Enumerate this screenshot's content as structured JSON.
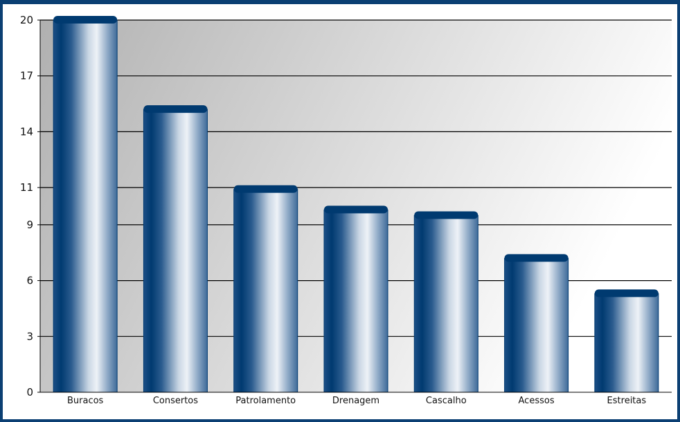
{
  "chart_data": {
    "type": "bar",
    "categories": [
      "Buracos",
      "Consertos",
      "Patrolamento",
      "Drenagem",
      "Cascalho",
      "Acessos",
      "Estreitas"
    ],
    "values": [
      20,
      15.2,
      10.9,
      9.8,
      9.5,
      7.2,
      5.3
    ],
    "ylim": [
      0,
      20
    ],
    "yticks": [
      0,
      3,
      6,
      9,
      11,
      14,
      17,
      20
    ],
    "grid": true,
    "legend": "none",
    "colors": {
      "bar_dark": "#003a70",
      "bar_mid": "#3c6a98",
      "bar_light": "#eef2f7",
      "cap": "#003a70",
      "plot_bg_dark": "#b4b4b4",
      "plot_bg_light": "#ffffff",
      "frame": "#0b3f73",
      "gridline": "#000000"
    }
  }
}
